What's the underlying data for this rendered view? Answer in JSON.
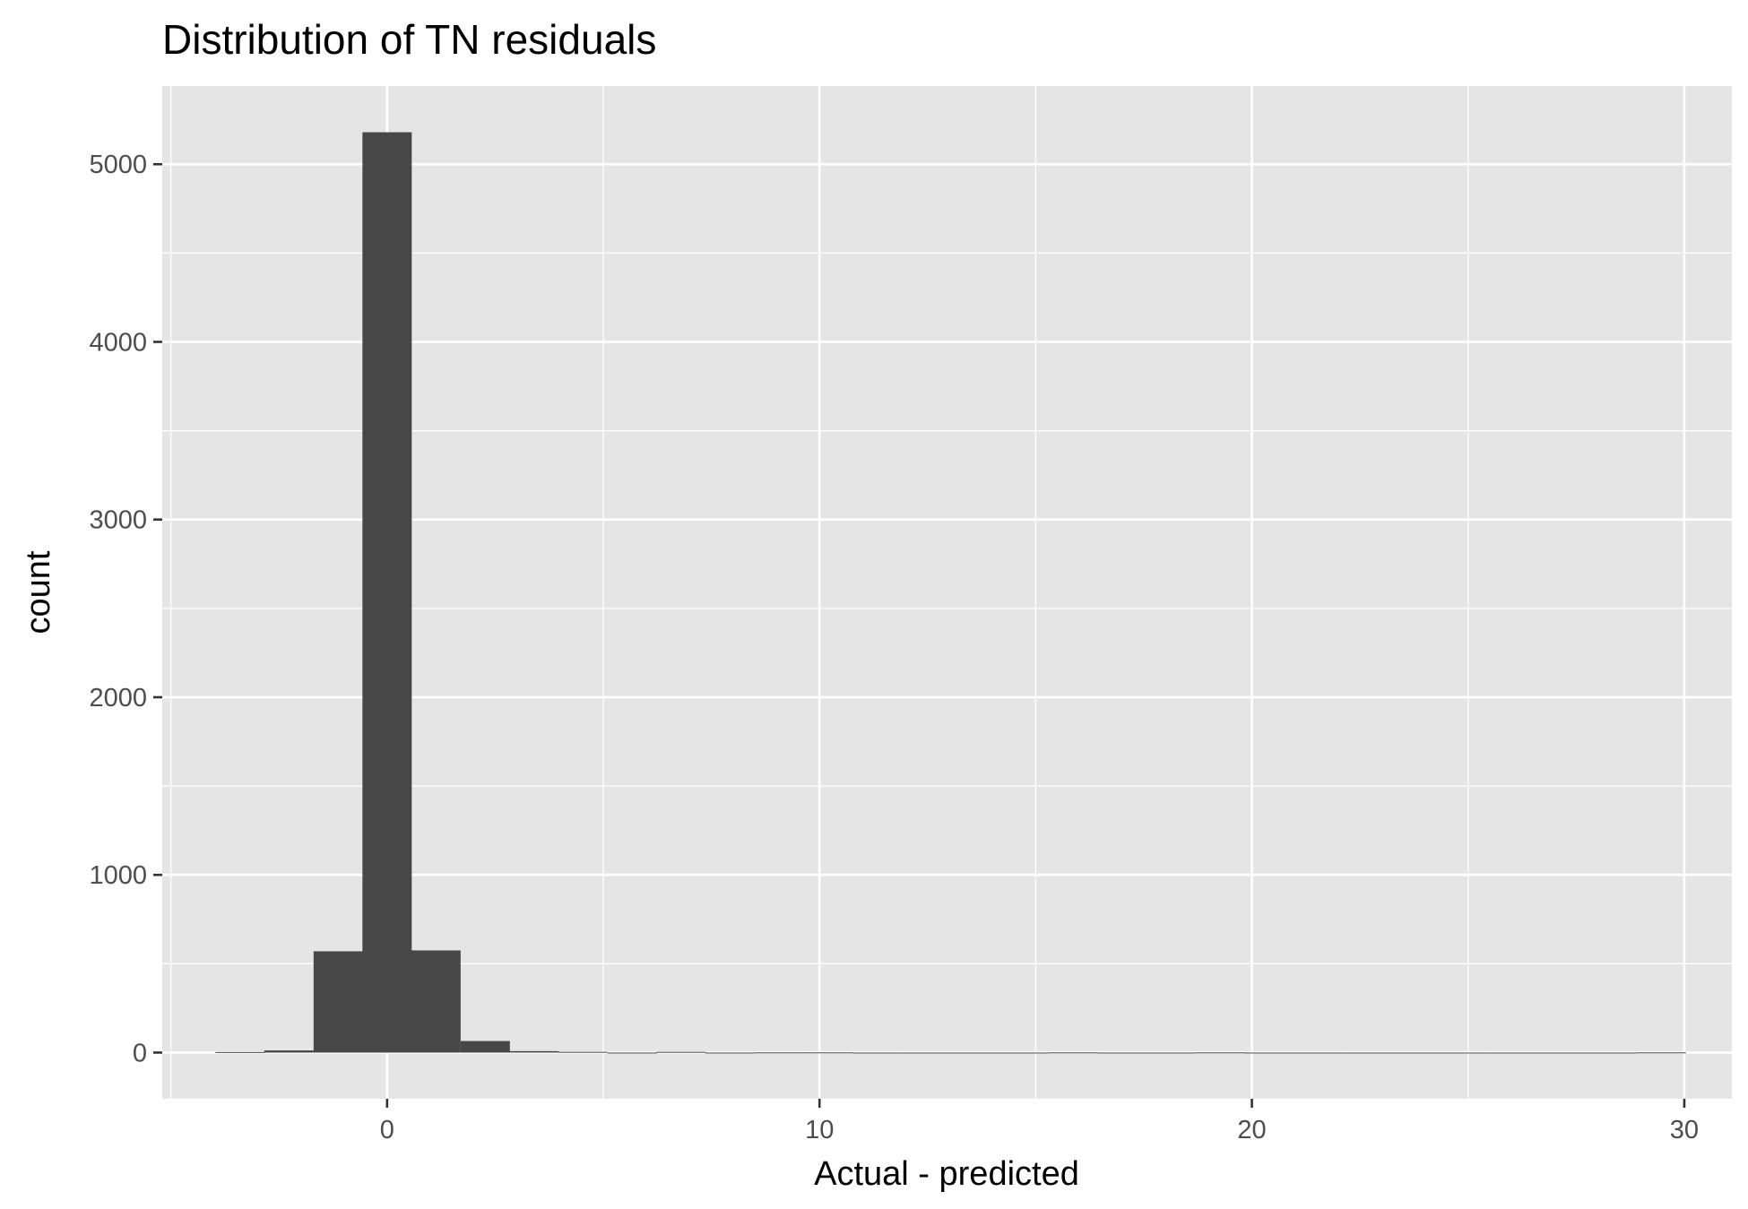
{
  "chart_data": {
    "type": "bar",
    "title": "Distribution of TN residuals",
    "xlabel": "Actual - predicted",
    "ylabel": "count",
    "xlim": [
      -5.2,
      31.1
    ],
    "ylim": [
      -260,
      5440
    ],
    "x_ticks": [
      0,
      10,
      20,
      30
    ],
    "x_tick_labels": [
      "0",
      "10",
      "20",
      "30"
    ],
    "y_ticks": [
      0,
      1000,
      2000,
      3000,
      4000,
      5000
    ],
    "y_tick_labels": [
      "0",
      "1000",
      "2000",
      "3000",
      "4000",
      "5000"
    ],
    "grid": true,
    "bin_width": 1.14,
    "bin_centers": [
      -3.4,
      -2.27,
      -1.13,
      0.0,
      1.13,
      2.27,
      3.4,
      4.53,
      5.67,
      6.8,
      7.93,
      9.07,
      10.2,
      11.33,
      12.47,
      13.6,
      14.73,
      15.87,
      17.0,
      18.13,
      19.27,
      20.4,
      21.53,
      22.67,
      23.8,
      24.93,
      26.07,
      27.2,
      28.33,
      29.47
    ],
    "values": [
      3,
      12,
      570,
      5180,
      575,
      65,
      8,
      4,
      0,
      4,
      0,
      1,
      1,
      0,
      0,
      0,
      0,
      1,
      0,
      0,
      1,
      0,
      0,
      0,
      0,
      0,
      0,
      0,
      0,
      1
    ],
    "colors": {
      "panel_bg": "#e5e5e5",
      "grid": "#ffffff",
      "bar": "#474747",
      "tick": "#333333",
      "tick_label": "#4d4d4d"
    }
  }
}
